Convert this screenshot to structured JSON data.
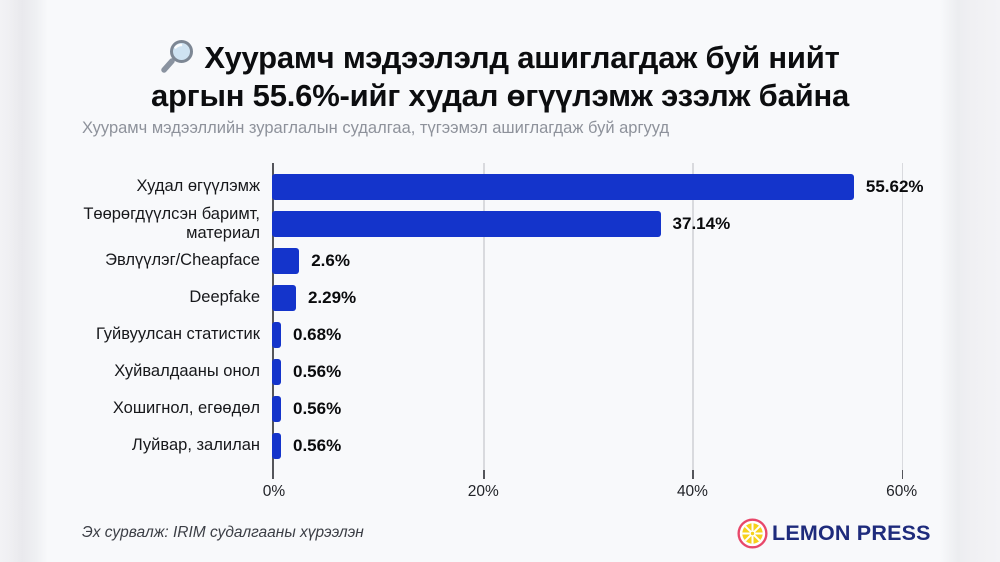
{
  "header": {
    "title_line1": "Хуурамч мэдээлэлд ашиглагдаж буй нийт",
    "title_line2": "аргын 55.6%-ийг худал өгүүлэмж эзэлж байна",
    "subtitle": "Хуурамч мэдээллийн зураглалын судалгаа, түгээмэл ашиглагдаж буй аргууд",
    "title_icon": "magnifying-glass"
  },
  "chart_data": {
    "type": "bar",
    "orientation": "horizontal",
    "title": "Хуурамч мэдээлэлд ашиглагдаж буй нийт аргын 55.6%-ийг худал өгүүлэмж эзэлж байна",
    "subtitle": "Хуурамч мэдээллийн зураглалын судалгаа, түгээмэл ашиглагдаж буй аргууд",
    "categories": [
      "Худал өгүүлэмж",
      "Төөрөгдүүлсэн баримт, материал",
      "Эвлүүлэг/Cheapface",
      "Deepfake",
      "Гуйвуулсан статистик",
      "Хуйвалдааны онол",
      "Хошигнол, егөөдөл",
      "Луйвар, залилан"
    ],
    "values": [
      55.62,
      37.14,
      2.6,
      2.29,
      0.68,
      0.56,
      0.56,
      0.56
    ],
    "value_labels": [
      "55.62%",
      "37.14%",
      "2.6%",
      "2.29%",
      "0.68%",
      "0.56%",
      "0.56%",
      "0.56%"
    ],
    "xlabel": "",
    "ylabel": "",
    "xlim": [
      0,
      65
    ],
    "x_tick_values": [
      0,
      20,
      40,
      60
    ],
    "x_tick_labels": [
      "0%",
      "20%",
      "40%",
      "60%"
    ],
    "grid": true,
    "legend": false,
    "bar_color": "#1434cb"
  },
  "footer": {
    "source": "Эх сурвалж: IRIM судалгааны хүрээлэн",
    "brand": "LEMON PRESS"
  },
  "colors": {
    "bar_blue": "#1434cb",
    "brand_navy": "#1e2b7c",
    "lemon_yellow": "#f6d21c",
    "lemon_ring": "#e8486a",
    "background": "#f8f9fb",
    "subtitle_gray": "#8e929b"
  }
}
